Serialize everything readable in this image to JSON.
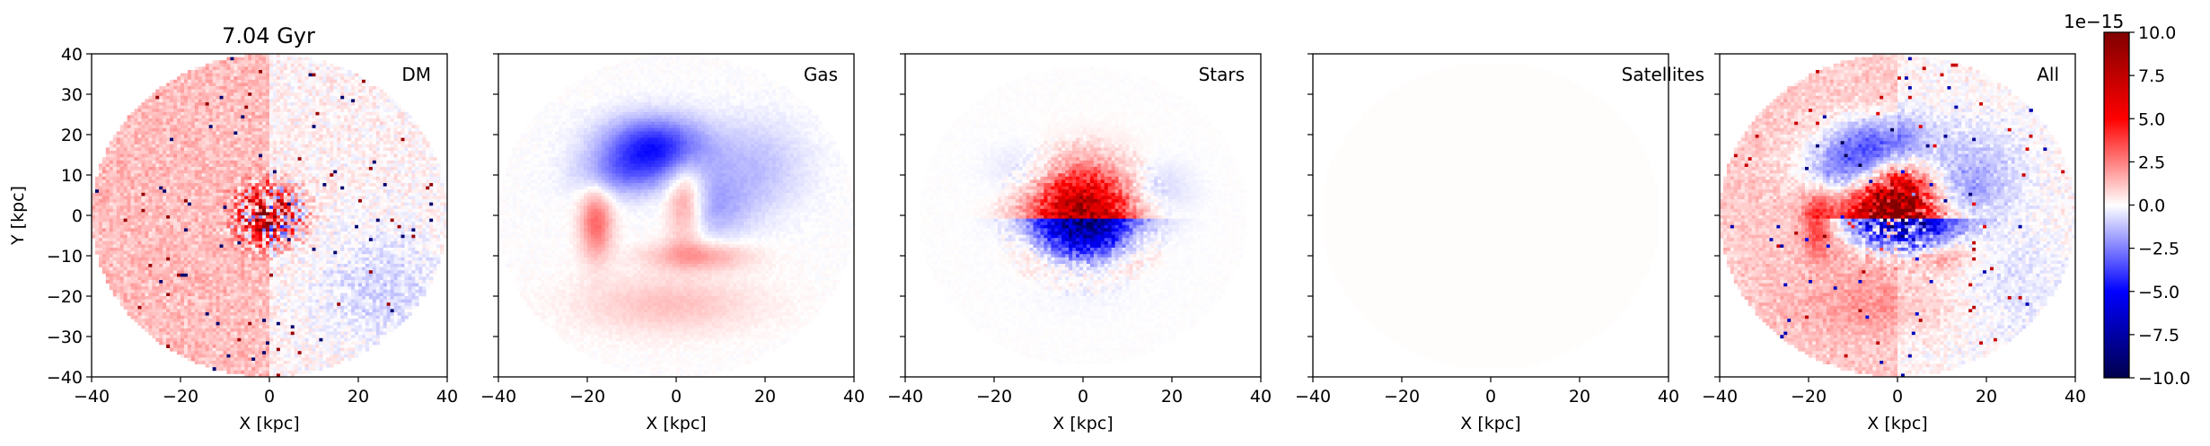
{
  "figure": {
    "time_title": "7.04 Gyr",
    "colorbar": {
      "offset_label": "1e−15",
      "cmap": "seismic",
      "range": [
        -10.0,
        10.0
      ],
      "ticks": [
        "−10.0",
        "−7.5",
        "−5.0",
        "−2.5",
        "0.0",
        "2.5",
        "5.0",
        "7.5",
        "10.0"
      ],
      "tick_values": [
        -10,
        -7.5,
        -5,
        -2.5,
        0,
        2.5,
        5,
        7.5,
        10
      ],
      "colors": {
        "neg_max": "#00004c",
        "neg_mid": "#0000ff",
        "zero": "#ffffff",
        "pos_mid": "#ff0000",
        "pos_max": "#800000"
      }
    }
  },
  "chart_data": [
    {
      "type": "heatmap",
      "panel_label": "DM",
      "title": "7.04 Gyr",
      "xlabel": "X [kpc]",
      "ylabel": "Y [kpc]",
      "xlim": [
        -40,
        40
      ],
      "ylim": [
        -40,
        40
      ],
      "xticks": [
        "−40",
        "−20",
        "0",
        "20",
        "40"
      ],
      "yticks": [
        "−40",
        "−30",
        "−20",
        "−10",
        "0",
        "10",
        "20",
        "30",
        "40"
      ],
      "field_extent_kpc": 40,
      "structure": {
        "left_hemisphere": 1.6,
        "right_hemisphere": 0.4,
        "lower_right": -1.0,
        "core_amplitude": 9.0,
        "core_radius": 5,
        "noise": 1.2
      }
    },
    {
      "type": "heatmap",
      "panel_label": "Gas",
      "xlabel": "X [kpc]",
      "ylabel": "",
      "xlim": [
        -40,
        40
      ],
      "ylim": [
        -40,
        40
      ],
      "xticks": [
        "−40",
        "−20",
        "0",
        "20",
        "40"
      ],
      "yticks": [],
      "field_extent_kpc": 40,
      "structure": {
        "blue_blob_upper": -4.5,
        "red_arc_left": 3.0,
        "red_arc_center": 2.5,
        "pink_lower": 1.2,
        "noise": 0.3
      }
    },
    {
      "type": "heatmap",
      "panel_label": "Stars",
      "xlabel": "X [kpc]",
      "ylabel": "",
      "xlim": [
        -40,
        40
      ],
      "ylim": [
        -40,
        40
      ],
      "xticks": [
        "−40",
        "−20",
        "0",
        "20",
        "40"
      ],
      "yticks": [],
      "field_extent_kpc": 37,
      "structure": {
        "core_red_top": 10.0,
        "core_blue_bottom": -10.0,
        "core_radius": 8,
        "ring_red_below": 1.6,
        "noise": 0.8
      }
    },
    {
      "type": "heatmap",
      "panel_label": "Satellites",
      "xlabel": "X [kpc]",
      "ylabel": "",
      "xlim": [
        -40,
        40
      ],
      "ylim": [
        -40,
        40
      ],
      "xticks": [
        "−40",
        "−20",
        "0",
        "20",
        "40"
      ],
      "yticks": [],
      "field_extent_kpc": 38,
      "structure": {
        "uniform_level": 0.05
      }
    },
    {
      "type": "heatmap",
      "panel_label": "All",
      "xlabel": "X [kpc]",
      "ylabel": "",
      "xlim": [
        -40,
        40
      ],
      "ylim": [
        -40,
        40
      ],
      "xticks": [
        "−40",
        "−20",
        "0",
        "20",
        "40"
      ],
      "yticks": [],
      "field_extent_kpc": 40,
      "structure": {
        "combined": true
      }
    }
  ]
}
